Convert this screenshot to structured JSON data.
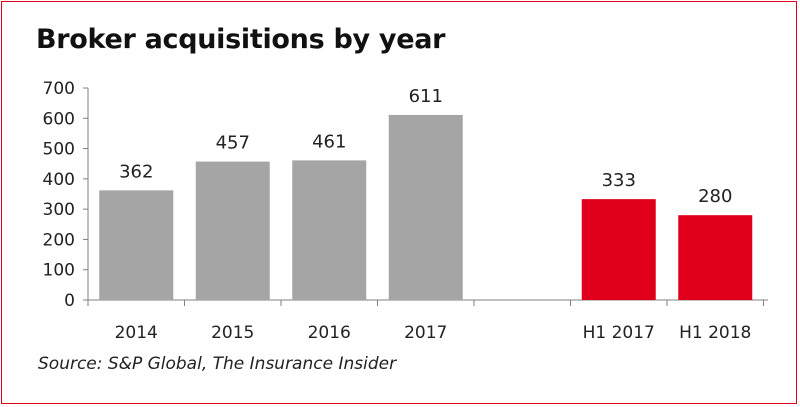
{
  "title": "Broker acquisitions by year",
  "source": "Source: S&P Global, The Insurance Insider",
  "colors": {
    "historical": "#a5a5a5",
    "half_year": "#e0001b",
    "frame": "#e0001b"
  },
  "chart_data": {
    "type": "bar",
    "title": "Broker acquisitions by year",
    "categories": [
      "2014",
      "2015",
      "2016",
      "2017",
      "",
      "H1 2017",
      "H1 2018"
    ],
    "values": [
      362,
      457,
      461,
      611,
      null,
      333,
      280
    ],
    "bar_colors": [
      "#a5a5a5",
      "#a5a5a5",
      "#a5a5a5",
      "#a5a5a5",
      null,
      "#e0001b",
      "#e0001b"
    ],
    "y_ticks": [
      0,
      100,
      200,
      300,
      400,
      500,
      600,
      700
    ],
    "ylim": [
      0,
      700
    ],
    "grid": false,
    "legend": "none",
    "xlabel": "",
    "ylabel": ""
  }
}
